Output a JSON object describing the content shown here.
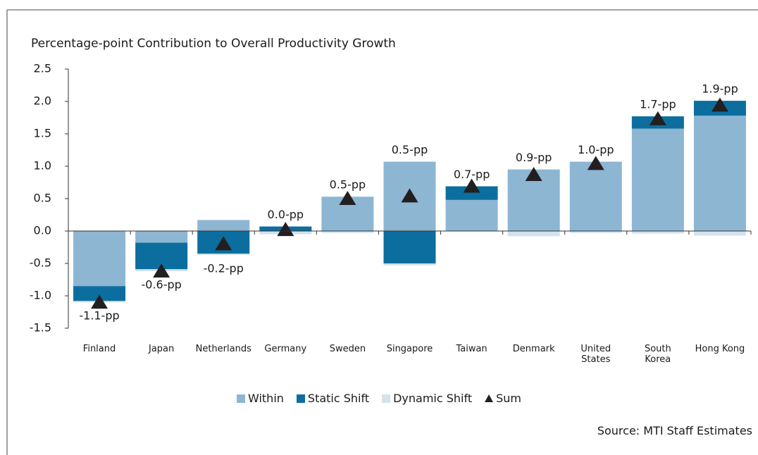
{
  "chart_data": {
    "type": "stacked-bar",
    "title": "Percentage-point Contribution to Overall Productivity Growth",
    "source": "Source: MTI Staff Estimates",
    "categories": [
      "Finland",
      "Japan",
      "Netherlands",
      "Germany",
      "Sweden",
      "Singapore",
      "Taiwan",
      "Denmark",
      "United States",
      "South Korea",
      "Hong Kong"
    ],
    "series": [
      {
        "name": "Within",
        "color": "#8db6d3",
        "values": [
          -0.85,
          -0.18,
          0.17,
          0.0,
          0.53,
          1.07,
          0.48,
          0.95,
          1.07,
          1.58,
          1.78
        ]
      },
      {
        "name": "Static Shift",
        "color": "#0c6e9e",
        "values": [
          -0.23,
          -0.41,
          -0.35,
          0.07,
          0.0,
          -0.5,
          0.21,
          0.0,
          0.0,
          0.19,
          0.23
        ]
      },
      {
        "name": "Dynamic Shift",
        "color": "#d3e2ed",
        "values": [
          -0.02,
          -0.03,
          -0.02,
          -0.05,
          -0.03,
          -0.03,
          0.0,
          -0.08,
          -0.03,
          -0.04,
          -0.07
        ]
      }
    ],
    "sum": {
      "name": "Sum",
      "color": "#231f20",
      "values": [
        -1.1,
        -0.62,
        -0.2,
        0.02,
        0.5,
        0.54,
        0.69,
        0.87,
        1.04,
        1.73,
        1.94
      ],
      "value_labels": [
        "-1.1-pp",
        "-0.6-pp",
        "-0.2-pp",
        "0.0-pp",
        "0.5-pp",
        "0.5-pp",
        "0.7-pp",
        "0.9-pp",
        "1.0-pp",
        "1.7-pp",
        "1.9-pp"
      ]
    },
    "ylim": [
      -1.5,
      2.5
    ],
    "yticks": [
      {
        "value": -1.5,
        "label": "-1.5"
      },
      {
        "value": -1.0,
        "label": "-1.0"
      },
      {
        "value": -0.5,
        "label": "-0.5"
      },
      {
        "value": 0,
        "label": "0.0"
      },
      {
        "value": 0.5,
        "label": "0.5"
      },
      {
        "value": 1.0,
        "label": "1.0"
      },
      {
        "value": 1.5,
        "label": "1.5"
      },
      {
        "value": 2.0,
        "label": "2.0"
      },
      {
        "value": 2.5,
        "label": "2.5"
      }
    ]
  }
}
